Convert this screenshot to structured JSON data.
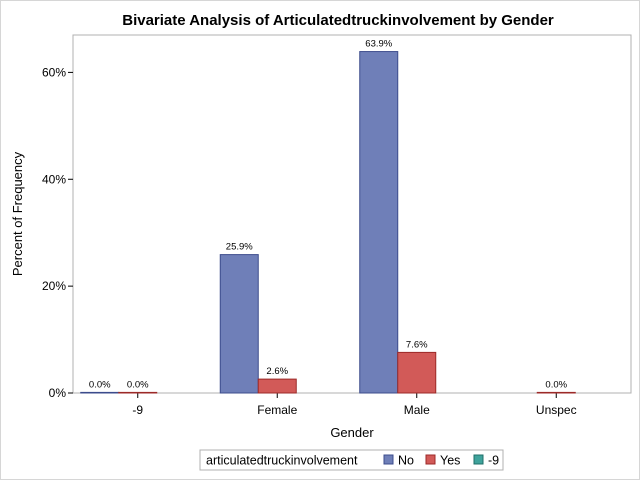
{
  "chart_data": {
    "type": "bar",
    "title": "Bivariate Analysis of Articulatedtruckinvolvement by Gender",
    "xlabel": "Gender",
    "ylabel": "Percent of Frequency",
    "categories": [
      "-9",
      "Female",
      "Male",
      "Unspec"
    ],
    "y_ticks": [
      0,
      20,
      40,
      60
    ],
    "y_tick_labels": [
      "0%",
      "20%",
      "40%",
      "60%"
    ],
    "ylim": [
      0,
      67
    ],
    "legend": {
      "title": "articulatedtruckinvolvement",
      "placement": "bottom-center"
    },
    "series": [
      {
        "name": "No",
        "color": "#6f7fb8",
        "stroke": "#3c4c8c",
        "values": [
          0.0,
          25.9,
          63.9,
          null
        ],
        "labels": [
          "0.0%",
          "25.9%",
          "63.9%",
          null
        ]
      },
      {
        "name": "Yes",
        "color": "#d25a58",
        "stroke": "#9c2a28",
        "values": [
          0.0,
          2.6,
          7.6,
          0.0
        ],
        "labels": [
          "0.0%",
          "2.6%",
          "7.6%",
          "0.0%"
        ]
      },
      {
        "name": "-9",
        "color": "#3fa39c",
        "stroke": "#1f6f69",
        "values": [
          null,
          null,
          null,
          null
        ],
        "labels": [
          null,
          null,
          null,
          null
        ]
      }
    ]
  }
}
